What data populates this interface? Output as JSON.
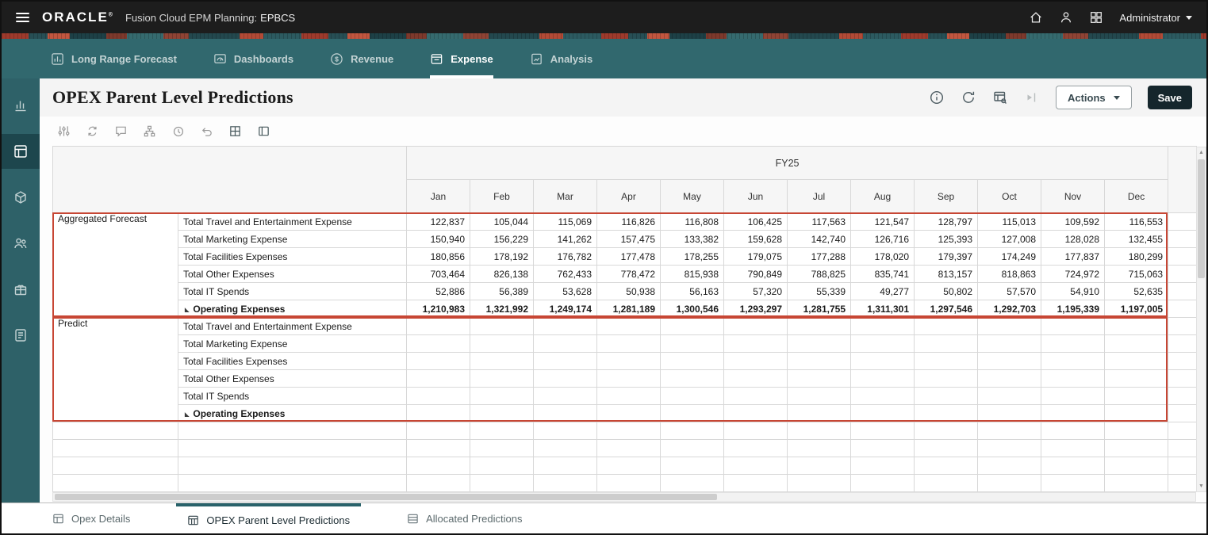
{
  "topbar": {
    "brand": "ORACLE",
    "product": "Fusion Cloud EPM Planning:",
    "environment": "EPBCS",
    "user": "Administrator"
  },
  "nav": {
    "tabs": [
      {
        "label": "Long Range Forecast",
        "icon": "bar-chart-icon",
        "active": false
      },
      {
        "label": "Dashboards",
        "icon": "dashboard-icon",
        "active": false
      },
      {
        "label": "Revenue",
        "icon": "revenue-dollar-icon",
        "active": false
      },
      {
        "label": "Expense",
        "icon": "expense-card-icon",
        "active": true
      },
      {
        "label": "Analysis",
        "icon": "analysis-doc-icon",
        "active": false
      }
    ]
  },
  "sidebar": {
    "items": [
      {
        "icon": "charts-icon",
        "active": false
      },
      {
        "icon": "data-forms-icon",
        "active": true
      },
      {
        "icon": "cube-icon",
        "active": false
      },
      {
        "icon": "users-icon",
        "active": false
      },
      {
        "icon": "package-icon",
        "active": false
      },
      {
        "icon": "tasks-icon",
        "active": false
      }
    ]
  },
  "page": {
    "title": "OPEX Parent Level Predictions",
    "actions_label": "Actions",
    "save_label": "Save",
    "title_icons": [
      "info-icon",
      "refresh-icon",
      "inspect-grid-icon",
      "open-drawer-icon"
    ]
  },
  "toolbar_icons": [
    "adjust-sliders-icon",
    "pivot-icon",
    "comment-icon",
    "hierarchy-icon",
    "history-icon",
    "undo-icon",
    "grid-plus-icon",
    "slide-layout-icon"
  ],
  "grid": {
    "year_header": "FY25",
    "months": [
      "Jan",
      "Feb",
      "Mar",
      "Apr",
      "May",
      "Jun",
      "Jul",
      "Aug",
      "Sep",
      "Oct",
      "Nov",
      "Dec"
    ],
    "filler_rows": 4,
    "groups": [
      {
        "name": "Aggregated Forecast",
        "rows": [
          {
            "label": "Total Travel and Entertainment Expense",
            "bold": false,
            "values": [
              "122,837",
              "105,044",
              "115,069",
              "116,826",
              "116,808",
              "106,425",
              "117,563",
              "121,547",
              "128,797",
              "115,013",
              "109,592",
              "116,553"
            ]
          },
          {
            "label": "Total Marketing Expense",
            "bold": false,
            "values": [
              "150,940",
              "156,229",
              "141,262",
              "157,475",
              "133,382",
              "159,628",
              "142,740",
              "126,716",
              "125,393",
              "127,008",
              "128,028",
              "132,455"
            ]
          },
          {
            "label": "Total Facilities Expenses",
            "bold": false,
            "values": [
              "180,856",
              "178,192",
              "176,782",
              "177,478",
              "178,255",
              "179,075",
              "177,288",
              "178,020",
              "179,397",
              "174,249",
              "177,837",
              "180,299"
            ]
          },
          {
            "label": "Total Other Expenses",
            "bold": false,
            "values": [
              "703,464",
              "826,138",
              "762,433",
              "778,472",
              "815,938",
              "790,849",
              "788,825",
              "835,741",
              "813,157",
              "818,863",
              "724,972",
              "715,063"
            ]
          },
          {
            "label": "Total IT Spends",
            "bold": false,
            "values": [
              "52,886",
              "56,389",
              "53,628",
              "50,938",
              "56,163",
              "57,320",
              "55,339",
              "49,277",
              "50,802",
              "57,570",
              "54,910",
              "52,635"
            ]
          },
          {
            "label": "Operating Expenses",
            "bold": true,
            "values": [
              "1,210,983",
              "1,321,992",
              "1,249,174",
              "1,281,189",
              "1,300,546",
              "1,293,297",
              "1,281,755",
              "1,311,301",
              "1,297,546",
              "1,292,703",
              "1,195,339",
              "1,197,005"
            ]
          }
        ]
      },
      {
        "name": "Predict",
        "rows": [
          {
            "label": "Total Travel and Entertainment Expense",
            "bold": false,
            "values": [
              "",
              "",
              "",
              "",
              "",
              "",
              "",
              "",
              "",
              "",
              "",
              ""
            ]
          },
          {
            "label": "Total Marketing Expense",
            "bold": false,
            "values": [
              "",
              "",
              "",
              "",
              "",
              "",
              "",
              "",
              "",
              "",
              "",
              ""
            ]
          },
          {
            "label": "Total Facilities Expenses",
            "bold": false,
            "values": [
              "",
              "",
              "",
              "",
              "",
              "",
              "",
              "",
              "",
              "",
              "",
              ""
            ]
          },
          {
            "label": "Total Other Expenses",
            "bold": false,
            "values": [
              "",
              "",
              "",
              "",
              "",
              "",
              "",
              "",
              "",
              "",
              "",
              ""
            ]
          },
          {
            "label": "Total IT Spends",
            "bold": false,
            "values": [
              "",
              "",
              "",
              "",
              "",
              "",
              "",
              "",
              "",
              "",
              "",
              ""
            ]
          },
          {
            "label": "Operating Expenses",
            "bold": true,
            "values": [
              "",
              "",
              "",
              "",
              "",
              "",
              "",
              "",
              "",
              "",
              "",
              ""
            ]
          }
        ]
      }
    ]
  },
  "bottom_tabs": [
    {
      "label": "Opex Details",
      "icon": "opex-details-tab-icon",
      "active": false
    },
    {
      "label": "OPEX Parent Level Predictions",
      "icon": "parent-predictions-tab-icon",
      "active": true
    },
    {
      "label": "Allocated Predictions",
      "icon": "allocated-predictions-tab-icon",
      "active": false
    }
  ],
  "colors": {
    "accent_red": "#c74634",
    "teal_band": "#31686e",
    "topbar": "#1d1d1d",
    "save_button": "#15262c"
  }
}
